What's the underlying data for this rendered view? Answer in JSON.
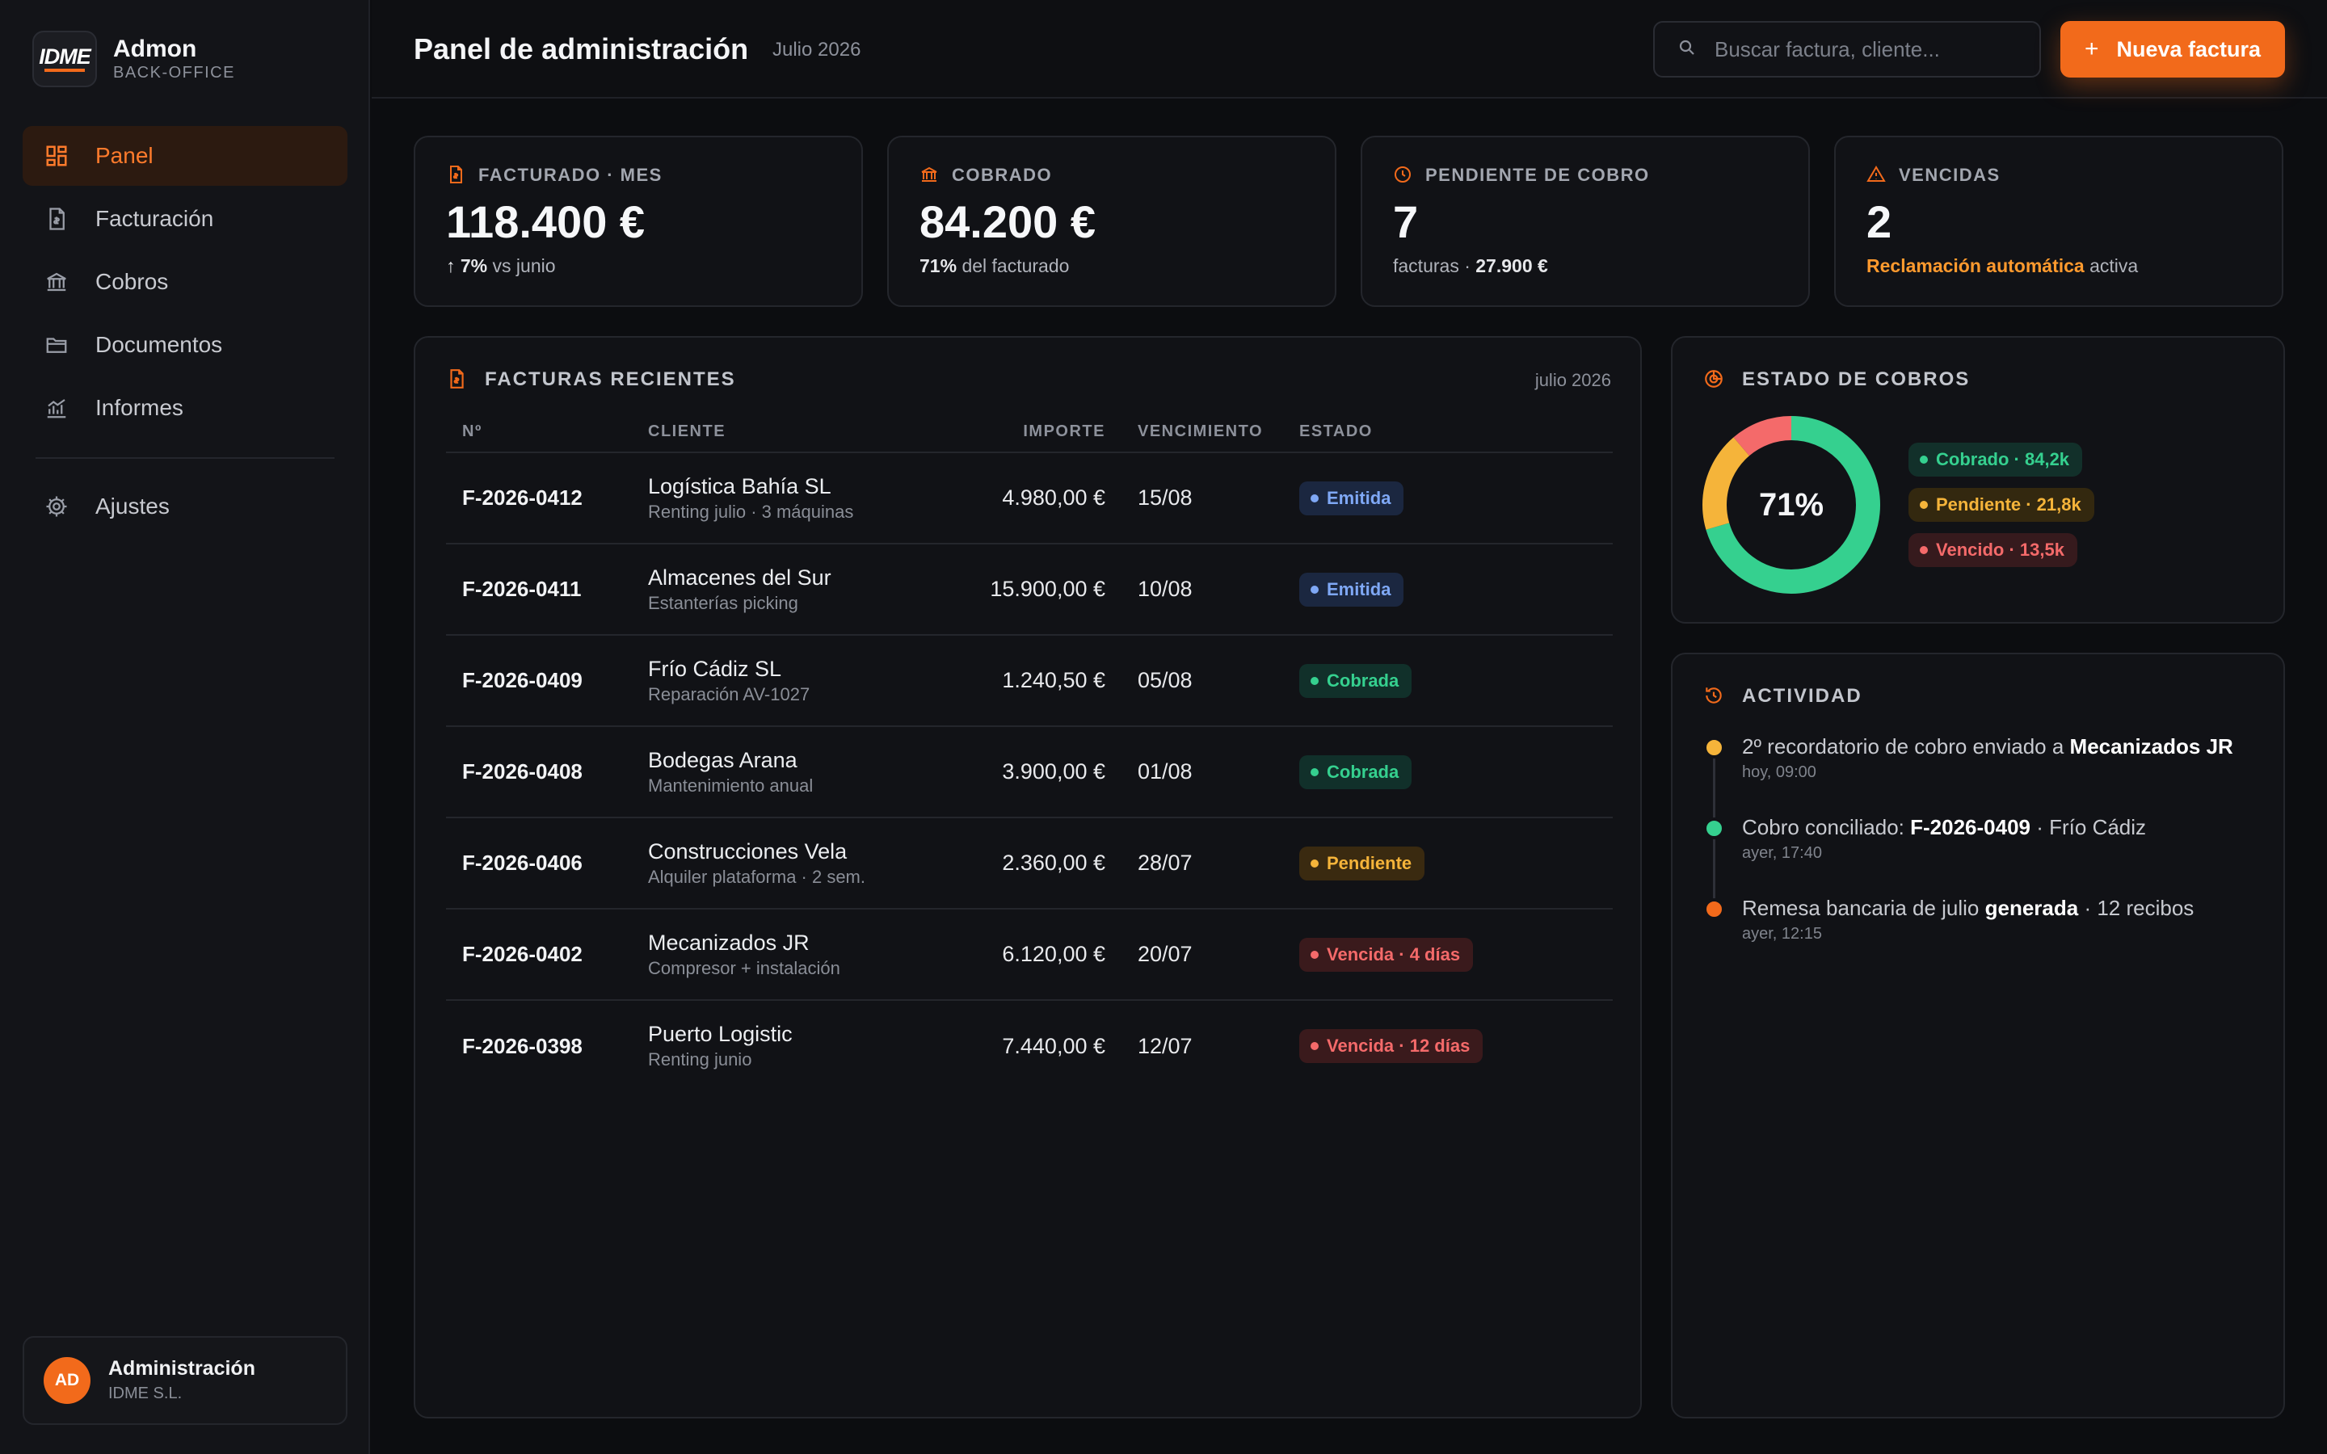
{
  "brand": {
    "logo": "IDME",
    "name": "Admon",
    "sub": "BACK-OFFICE"
  },
  "nav": {
    "items": [
      {
        "label": "Panel",
        "icon": "dashboard-icon",
        "active": true
      },
      {
        "label": "Facturación",
        "icon": "invoice-icon"
      },
      {
        "label": "Cobros",
        "icon": "bank-icon"
      },
      {
        "label": "Documentos",
        "icon": "folder-icon"
      },
      {
        "label": "Informes",
        "icon": "chart-icon"
      }
    ],
    "settings": {
      "label": "Ajustes",
      "icon": "gear-icon"
    }
  },
  "user": {
    "initials": "AD",
    "name": "Administración",
    "org": "IDME S.L."
  },
  "header": {
    "title": "Panel de administración",
    "period": "Julio 2026",
    "search_placeholder": "Buscar factura, cliente...",
    "new_button": "Nueva factura"
  },
  "kpis": {
    "billed": {
      "label": "FACTURADO · MES",
      "value": "118.400 €",
      "delta": "↑ 7%",
      "delta_note": "vs junio"
    },
    "collected": {
      "label": "COBRADO",
      "value": "84.200 €",
      "pct": "71%",
      "note": "del facturado"
    },
    "pending": {
      "label": "PENDIENTE DE COBRO",
      "value": "7",
      "note": "facturas ·",
      "amount": "27.900 €"
    },
    "overdue": {
      "label": "VENCIDAS",
      "value": "2",
      "highlight": "Reclamación automática",
      "note": "activa"
    }
  },
  "invoices": {
    "title": "FACTURAS RECIENTES",
    "date": "julio 2026",
    "columns": {
      "no": "Nº",
      "client": "CLIENTE",
      "amount": "IMPORTE",
      "due": "VENCIMIENTO",
      "status": "ESTADO"
    },
    "rows": [
      {
        "no": "F-2026-0412",
        "client": "Logística Bahía SL",
        "desc": "Renting julio · 3 máquinas",
        "amount": "4.980,00 €",
        "due": "15/08",
        "status": "Emitida"
      },
      {
        "no": "F-2026-0411",
        "client": "Almacenes del Sur",
        "desc": "Estanterías picking",
        "amount": "15.900,00 €",
        "due": "10/08",
        "status": "Emitida"
      },
      {
        "no": "F-2026-0409",
        "client": "Frío Cádiz SL",
        "desc": "Reparación AV-1027",
        "amount": "1.240,50 €",
        "due": "05/08",
        "status": "Cobrada"
      },
      {
        "no": "F-2026-0408",
        "client": "Bodegas Arana",
        "desc": "Mantenimiento anual",
        "amount": "3.900,00 €",
        "due": "01/08",
        "status": "Cobrada"
      },
      {
        "no": "F-2026-0406",
        "client": "Construcciones Vela",
        "desc": "Alquiler plataforma · 2 sem.",
        "amount": "2.360,00 €",
        "due": "28/07",
        "status": "Pendiente"
      },
      {
        "no": "F-2026-0402",
        "client": "Mecanizados JR",
        "desc": "Compresor + instalación",
        "amount": "6.120,00 €",
        "due": "20/07",
        "status": "Vencida · 4 días"
      },
      {
        "no": "F-2026-0398",
        "client": "Puerto Logistic",
        "desc": "Renting junio",
        "amount": "7.440,00 €",
        "due": "12/07",
        "status": "Vencida · 12 días"
      }
    ]
  },
  "collections": {
    "title": "ESTADO DE COBROS",
    "center_label": "71%",
    "legend": [
      "Cobrado · 84,2k",
      "Pendiente · 21,8k",
      "Vencido · 13,5k"
    ]
  },
  "chart_data": {
    "type": "pie",
    "categories": [
      "Cobrado",
      "Pendiente",
      "Vencido"
    ],
    "values": [
      84.2,
      21.8,
      13.5
    ],
    "colors": [
      "#35d08f",
      "#f5b43a",
      "#f46a6a"
    ],
    "title": "ESTADO DE COBROS"
  },
  "activity": {
    "title": "ACTIVIDAD",
    "items": [
      {
        "pre": "2º recordatorio de cobro enviado a ",
        "strong": "Mecanizados JR",
        "post": "",
        "time": "hoy, 09:00",
        "color": "#f5b43a"
      },
      {
        "pre": "Cobro conciliado: ",
        "strong": "F-2026-0409",
        "post": " · Frío Cádiz",
        "time": "ayer, 17:40",
        "color": "#35d08f"
      },
      {
        "pre": "Remesa bancaria de julio ",
        "strong": "generada",
        "post": " · 12 recibos",
        "time": "ayer, 12:15",
        "color": "#f26a1b"
      }
    ]
  },
  "colors": {
    "accent": "#f26a1b",
    "success": "#35d08f",
    "warning": "#f5b43a",
    "danger": "#f46a6a",
    "info": "#7fa8f5"
  }
}
